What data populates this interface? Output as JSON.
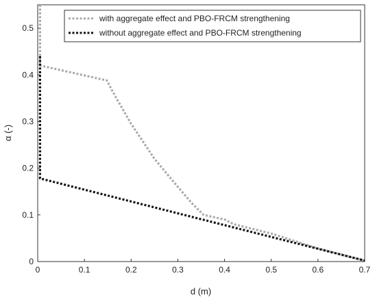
{
  "chart_data": {
    "type": "line",
    "xlabel": "d (m)",
    "ylabel": "α (-)",
    "xlim": [
      0,
      0.7
    ],
    "ylim": [
      0,
      0.55
    ],
    "x_ticks": [
      "0",
      "0.1",
      "0.2",
      "0.3",
      "0.4",
      "0.5",
      "0.6",
      "0.7"
    ],
    "y_ticks": [
      "0",
      "0.1",
      "0.2",
      "0.3",
      "0.4",
      "0.5"
    ],
    "grid": false,
    "legend_position": "top-right",
    "series": [
      {
        "name": "with aggregate effect and PBO-FRCM strengthening",
        "color": "#aaaaaa",
        "style": "dotted",
        "points": [
          [
            0.005,
            0.55
          ],
          [
            0.005,
            0.42
          ],
          [
            0.148,
            0.388
          ],
          [
            0.16,
            0.365
          ],
          [
            0.2,
            0.295
          ],
          [
            0.25,
            0.22
          ],
          [
            0.3,
            0.16
          ],
          [
            0.33,
            0.125
          ],
          [
            0.355,
            0.1
          ],
          [
            0.4,
            0.09
          ],
          [
            0.42,
            0.08
          ],
          [
            0.5,
            0.06
          ],
          [
            0.6,
            0.028
          ],
          [
            0.7,
            0.002
          ]
        ]
      },
      {
        "name": "without aggregate effect and PBO-FRCM strengthening",
        "color": "#111111",
        "style": "dotted",
        "points": [
          [
            0.005,
            0.44
          ],
          [
            0.005,
            0.178
          ],
          [
            0.7,
            0.002
          ]
        ]
      }
    ]
  }
}
